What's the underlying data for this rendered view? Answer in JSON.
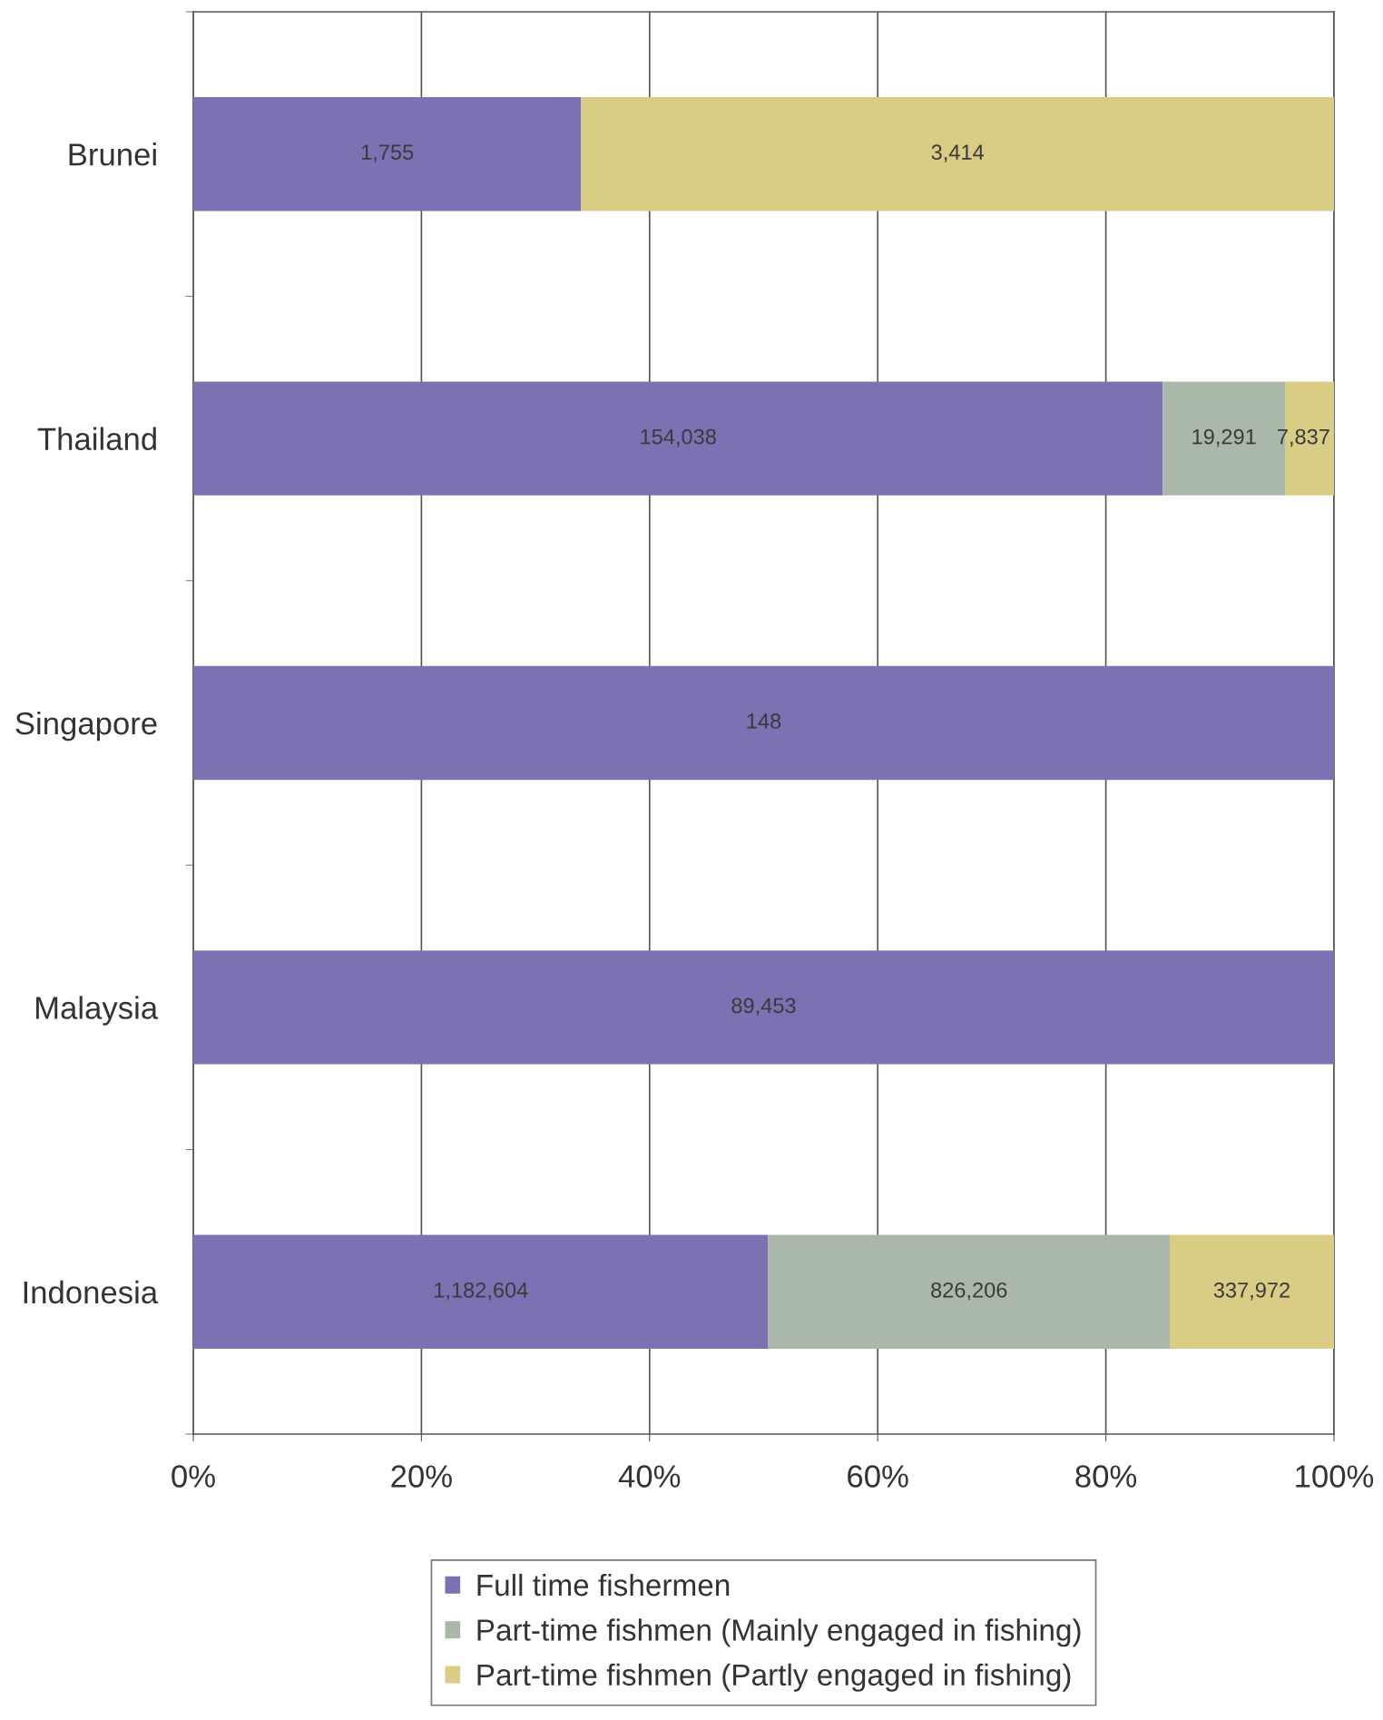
{
  "chart_data": {
    "type": "bar",
    "orientation": "horizontal",
    "stacked": true,
    "categories": [
      "Brunei",
      "Thailand",
      "Singapore",
      "Malaysia",
      "Indonesia"
    ],
    "series": [
      {
        "name": "Full time fishermen",
        "color": "#7c72b3",
        "values": [
          34.0,
          85.0,
          100,
          100,
          50.4
        ]
      },
      {
        "name": "Part-time fishmen (Mainly engaged in fishing)",
        "color": "#a9b8a8",
        "values": [
          null,
          10.7,
          null,
          null,
          35.2
        ]
      },
      {
        "name": "Part-time fishmen (Partly engaged in fishing)",
        "color": "#d9cd86",
        "values": [
          66.0,
          4.3,
          null,
          null,
          14.4
        ]
      }
    ],
    "annotations": [
      "1,755",
      "3,414",
      "154,038",
      "19,291",
      "7,837",
      "148",
      "89,453",
      "1,182,604",
      "826,206",
      "337,972"
    ],
    "xlim": [
      0,
      100
    ],
    "xticks": [
      {
        "value": 0,
        "label": "0%"
      },
      {
        "value": 20,
        "label": "20%"
      },
      {
        "value": 40,
        "label": "40%"
      },
      {
        "value": 60,
        "label": "60%"
      },
      {
        "value": 80,
        "label": "80%"
      },
      {
        "value": 100,
        "label": "100%"
      }
    ],
    "grid": "x",
    "legend": "bottom"
  }
}
